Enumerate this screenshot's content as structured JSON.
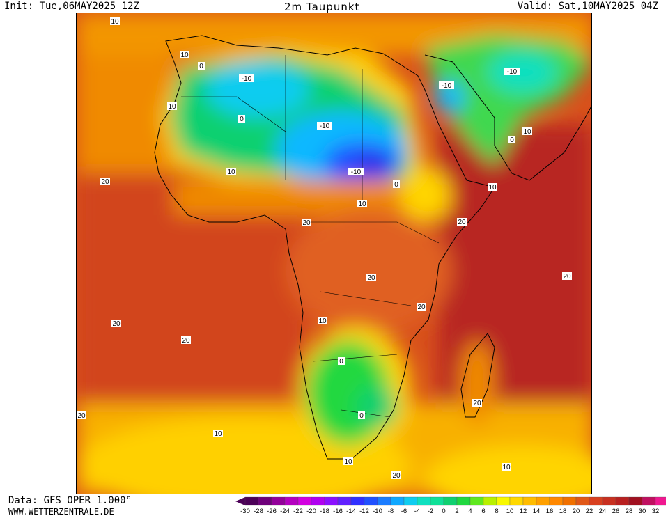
{
  "header": {
    "init": "Init: Tue,06MAY2025 12Z",
    "title": "2m Taupunkt",
    "valid": "Valid: Sat,10MAY2025 04Z"
  },
  "footer": {
    "source": "Data: GFS OPER 1.000°",
    "website": "WWW.WETTERZENTRALE.DE"
  },
  "colorbar": {
    "ticks": [
      "-30",
      "-28",
      "-26",
      "-24",
      "-22",
      "-20",
      "-18",
      "-16",
      "-14",
      "-12",
      "-10",
      "-8",
      "-6",
      "-4",
      "-2",
      "0",
      "2",
      "4",
      "6",
      "8",
      "10",
      "12",
      "14",
      "16",
      "18",
      "20",
      "22",
      "24",
      "26",
      "28",
      "30",
      "32"
    ],
    "colors": [
      "#4b0057",
      "#6e007a",
      "#93009a",
      "#b400c0",
      "#d200e0",
      "#b000f0",
      "#8a10ff",
      "#6020ff",
      "#3030ff",
      "#2050ff",
      "#1a7cff",
      "#10a8ff",
      "#10ccf0",
      "#10e0c0",
      "#10e098",
      "#10d070",
      "#20d840",
      "#60e820",
      "#b8f000",
      "#f8f800",
      "#ffd800",
      "#ffbc00",
      "#ffa000",
      "#ff8800",
      "#f07000",
      "#e05818",
      "#d84020",
      "#c83020",
      "#b82020",
      "#a01020",
      "#c01060",
      "#f01890"
    ]
  },
  "map_labels": [
    "10",
    "-10",
    "0",
    "20"
  ],
  "colors": {
    "land_border": "#000000",
    "frame": "#000000"
  }
}
